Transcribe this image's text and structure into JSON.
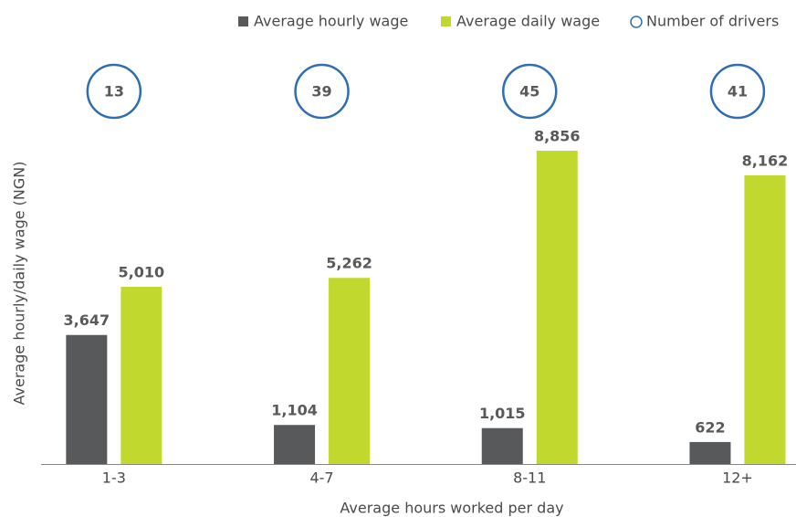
{
  "chart_data": {
    "type": "bar",
    "xlabel": "Average hours worked per day",
    "ylabel": "Average hourly/daily wage (NGN)",
    "categories": [
      "1-3",
      "4-7",
      "8-11",
      "12+"
    ],
    "series": [
      {
        "name": "Average hourly wage",
        "color": "#58595b",
        "values": [
          3647,
          1104,
          1015,
          622
        ],
        "value_labels": [
          "3,647",
          "1,104",
          "1,015",
          "622"
        ]
      },
      {
        "name": "Average daily wage",
        "color": "#c1d82f",
        "values": [
          5010,
          5262,
          8856,
          8162
        ],
        "value_labels": [
          "5,010",
          "5,262",
          "8,856",
          "8,162"
        ]
      }
    ],
    "drivers": {
      "name": "Number of drivers",
      "color": "#2f6db5",
      "values": [
        13,
        39,
        45,
        41
      ]
    },
    "grid": false
  }
}
